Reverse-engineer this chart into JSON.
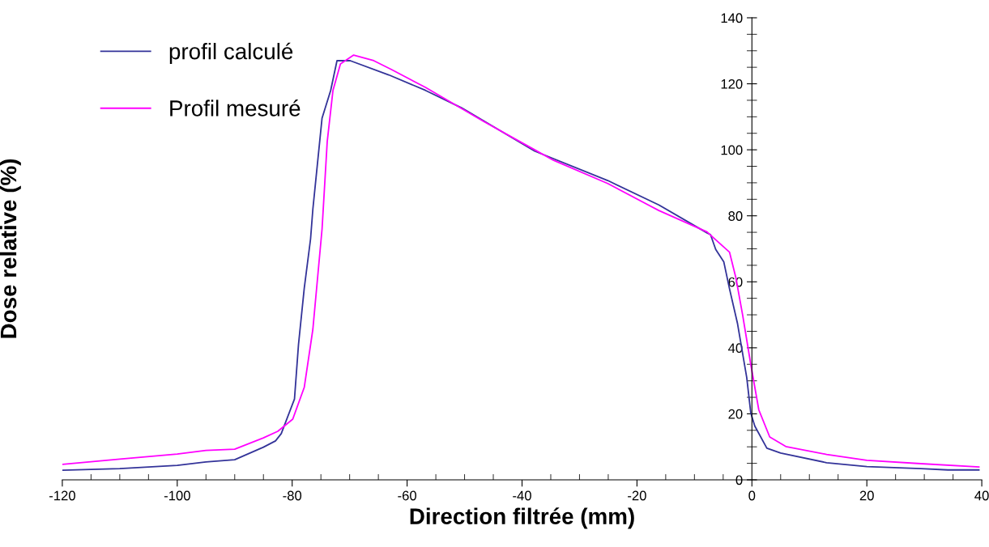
{
  "chart_data": {
    "type": "line",
    "xlabel": "Direction filtrée (mm)",
    "ylabel": "Dose relative (%)",
    "xlim": [
      -120,
      40
    ],
    "xticks": [
      -120,
      -100,
      -80,
      -60,
      -40,
      -20,
      0,
      20,
      40
    ],
    "ylim": [
      0,
      140
    ],
    "yticks": [
      0,
      20,
      40,
      60,
      80,
      100,
      120,
      140
    ],
    "grid": false,
    "legend": "top left",
    "marker": "none",
    "line_style": "solid",
    "series": [
      {
        "name": "profil calculé",
        "color": "#333399",
        "x": [
          -120,
          -110,
          -100,
          -95,
          -90,
          -85,
          -82.9,
          -81.9,
          -79.6,
          -78.9,
          -77.9,
          -76.8,
          -76.4,
          -74.8,
          -73.3,
          -72.2,
          -69.9,
          -63.2,
          -56.8,
          -50.5,
          -37.8,
          -25.1,
          -16.2,
          -7.8,
          -7.2,
          -6.3,
          -4.9,
          -3.9,
          -2.5,
          -0.9,
          -0.2,
          0.5,
          2.6,
          5,
          13,
          20,
          29.4,
          34.1,
          39.5
        ],
        "values": [
          2.9,
          3.4,
          4.4,
          5.4,
          6.1,
          9.9,
          11.8,
          14,
          24.5,
          41,
          58,
          73,
          82,
          109.6,
          118,
          127,
          127,
          122.7,
          118,
          112.7,
          99.6,
          90.7,
          83.3,
          74.8,
          74.3,
          69.8,
          66.1,
          57.9,
          47.3,
          31,
          20.3,
          16.3,
          9.6,
          8.1,
          5.2,
          4,
          3.4,
          3,
          3
        ]
      },
      {
        "name": "Profil mesuré",
        "color": "#ff00ff",
        "x": [
          -120,
          -110,
          -100,
          -95,
          -90,
          -85,
          -82.5,
          -79.9,
          -77.9,
          -76.4,
          -74.8,
          -73.9,
          -72.9,
          -71.6,
          -69.3,
          -65.8,
          -62.7,
          -56.8,
          -46.7,
          -37.8,
          -34.5,
          -25.1,
          -16.2,
          -7.8,
          -6.8,
          -3.9,
          -2.8,
          -1.6,
          -0.2,
          1.2,
          3.1,
          5.9,
          13,
          20,
          29.4,
          39.5
        ],
        "values": [
          4.7,
          6.3,
          7.8,
          8.9,
          9.3,
          12.7,
          14.7,
          18.4,
          28,
          45.6,
          76,
          102.5,
          118,
          126,
          128.7,
          127,
          124.3,
          118.9,
          108.6,
          100,
          96.8,
          89.8,
          81.6,
          75.1,
          73.5,
          69,
          61.3,
          49.8,
          35,
          21.2,
          13,
          10.1,
          7.7,
          5.9,
          4.9,
          3.9
        ]
      }
    ]
  }
}
